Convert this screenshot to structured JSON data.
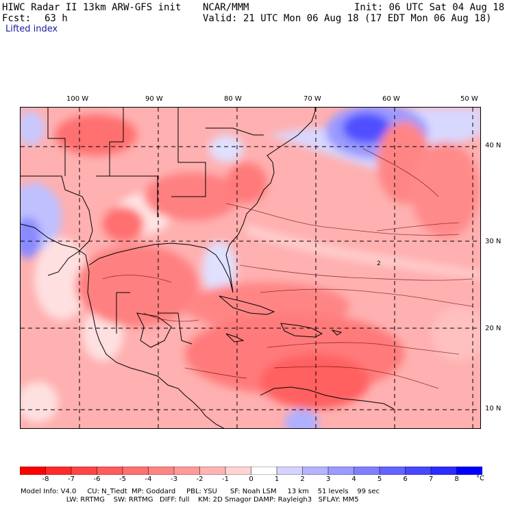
{
  "header": {
    "title": "HIWC Radar II 13km ARW-GFS init",
    "org": "NCAR/MMM",
    "init": "Init: 06 UTC Sat 04 Aug 18",
    "fcst_label": "Fcst:",
    "fcst_value": "63 h",
    "valid": "Valid: 21 UTC Mon 06 Aug 18 (17 EDT Mon 06 Aug 18)",
    "field": "Lifted index"
  },
  "map": {
    "lon_labels": [
      "100 W",
      "90 W",
      "80 W",
      "70 W",
      "60 W",
      "50 W"
    ],
    "lat_labels": [
      "40 N",
      "30 N",
      "20 N",
      "10 N"
    ],
    "contour_label": "2"
  },
  "colorbar": {
    "ticks": [
      "-8",
      "-7",
      "-6",
      "-5",
      "-4",
      "-3",
      "-2",
      "-1",
      "0",
      "1",
      "2",
      "3",
      "4",
      "5",
      "6",
      "7",
      "8"
    ],
    "unit": "°C",
    "colors": [
      "#ff0000",
      "#ff2b2b",
      "#ff4545",
      "#ff5c5c",
      "#ff7070",
      "#ff8585",
      "#ff9a9a",
      "#ffb4b4",
      "#ffd4d4",
      "#ffffff",
      "#d4d4ff",
      "#b4b4ff",
      "#9a9aff",
      "#8080ff",
      "#6464ff",
      "#4848ff",
      "#2c2cff",
      "#0000ff"
    ]
  },
  "footer": {
    "line1": "Model Info: V4.0     CU: N_Tiedt  MP: Goddard     PBL: YSU      SF: Noah LSM     13 km    51 levels    99 sec",
    "line2": "                     LW: RRTMG    SW: RRTMG   DIFF: full    KM: 2D Smagor DAMP: Rayleigh3   SFLAY: MM5"
  }
}
